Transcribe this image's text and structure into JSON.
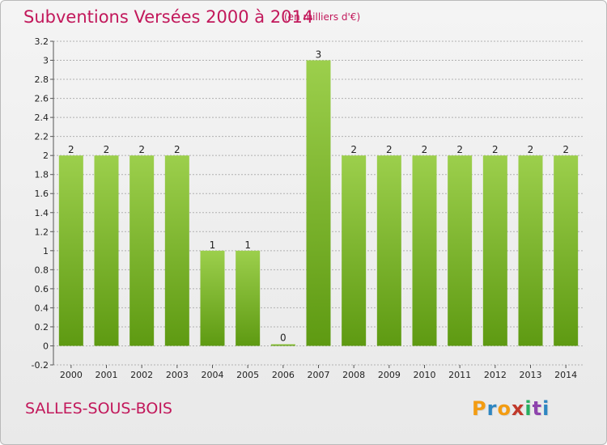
{
  "header": {
    "title": "Subventions Versées 2000 à 2014",
    "subtitle": "(en milliers d'€)"
  },
  "footer": {
    "commune": "SALLES-SOUS-BOIS",
    "logo_text": "Proxiti",
    "logo_colors": [
      "#f39c12",
      "#2e86c1",
      "#f39c12",
      "#c0392b",
      "#27ae60",
      "#8e44ad",
      "#2e86c1"
    ]
  },
  "colors": {
    "title": "#c2185b",
    "bar_light": "#9ccf4c",
    "bar_dark": "#5e9a12",
    "grid": "#b0b0b0",
    "text": "#222222"
  },
  "chart_data": {
    "type": "bar",
    "title": "Subventions Versées 2000 à 2014",
    "subtitle": "(en milliers d'€)",
    "categories": [
      "2000",
      "2001",
      "2002",
      "2003",
      "2004",
      "2005",
      "2006",
      "2007",
      "2008",
      "2009",
      "2010",
      "2011",
      "2012",
      "2013",
      "2014"
    ],
    "values": [
      2,
      2,
      2,
      2,
      1,
      1,
      0,
      3,
      2,
      2,
      2,
      2,
      2,
      2,
      2
    ],
    "data_labels": [
      "2",
      "2",
      "2",
      "2",
      "1",
      "1",
      "0",
      "3",
      "2",
      "2",
      "2",
      "2",
      "2",
      "2",
      "2"
    ],
    "ylim": [
      -0.2,
      3.2
    ],
    "y_ticks": [
      "-0.2",
      "0",
      "0.2",
      "0.4",
      "0.6",
      "0.8",
      "1",
      "1.2",
      "1.4",
      "1.6",
      "1.8",
      "2",
      "2.2",
      "2.4",
      "2.6",
      "2.8",
      "3",
      "3.2"
    ],
    "grid": true,
    "xlabel": "",
    "ylabel": ""
  }
}
